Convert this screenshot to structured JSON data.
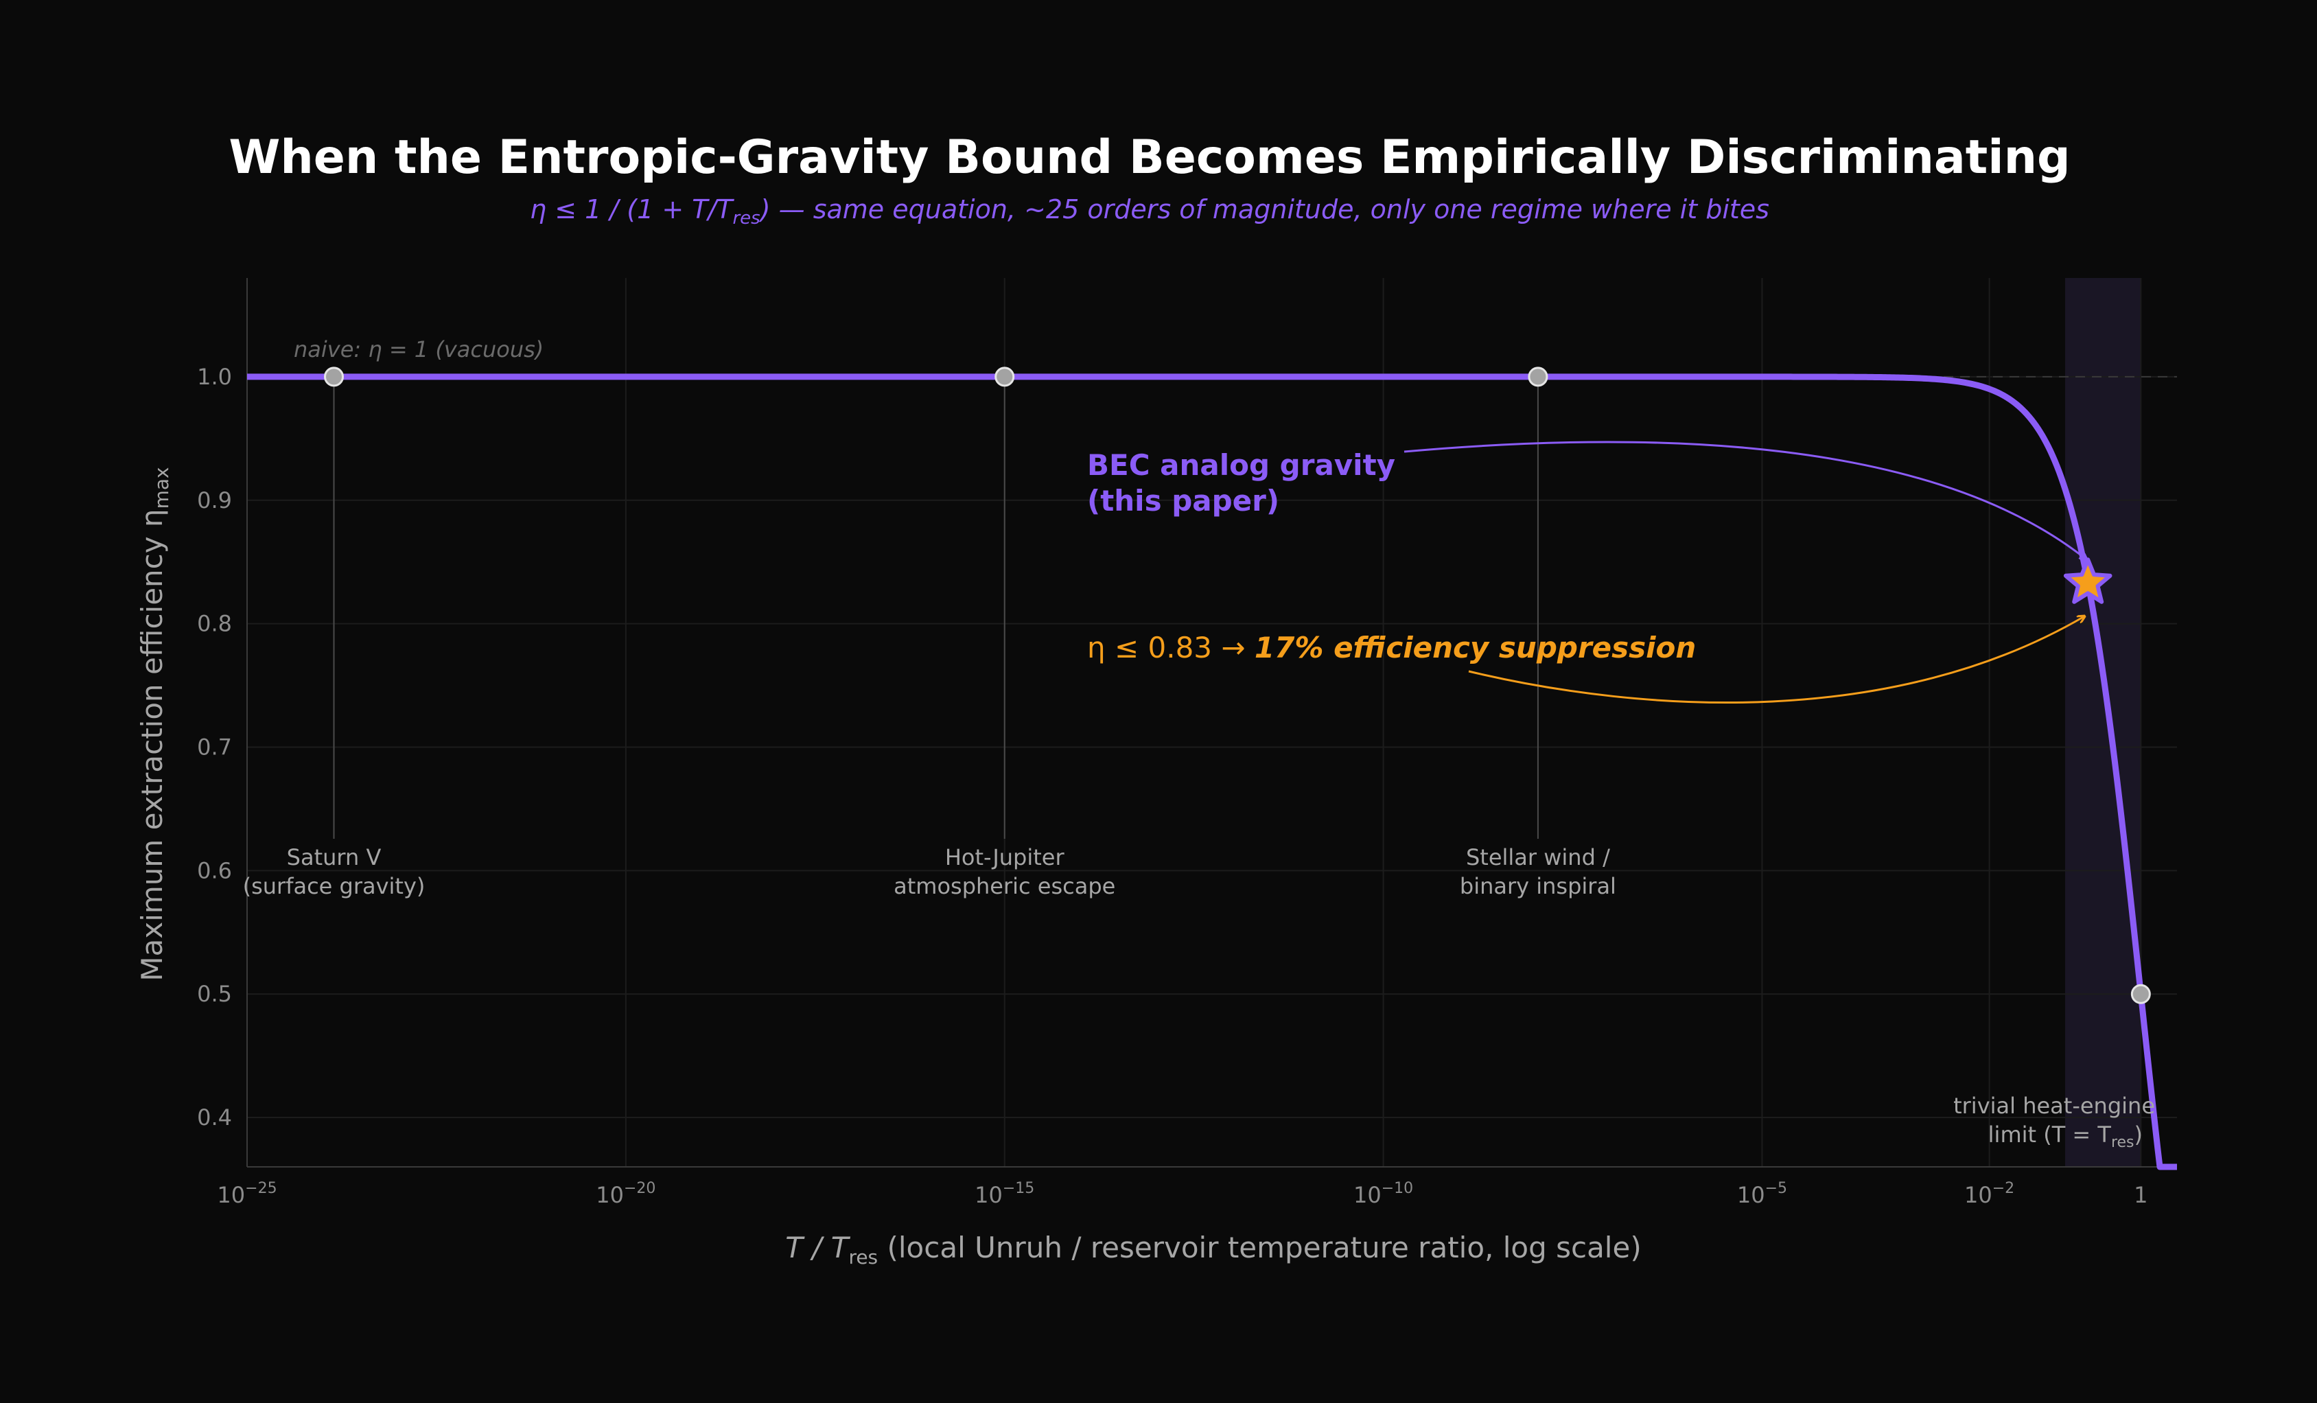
{
  "chart_data": {
    "type": "line",
    "title": "When the Entropic-Gravity Bound Becomes Empirically Discriminating",
    "subtitle": {
      "formula": "η ≤ 1 / (1 + T/T",
      "formula_sub": "res",
      "formula_end": ")",
      "text": "  —  same equation, ~25 orders of magnitude, only one regime where it bites"
    },
    "xlabel": {
      "symbol": "T / T",
      "symbol_sub": "res",
      "text": "  (local Unruh / reservoir temperature ratio, log scale)"
    },
    "ylabel": {
      "text": "Maximum extraction efficiency  η",
      "sub": "max"
    },
    "x_scale": "log",
    "xlim": [
      1e-25,
      3
    ],
    "ylim": [
      0.36,
      1.08
    ],
    "x_ticks": [
      {
        "value": 1e-25,
        "base": "10",
        "exp": "−25"
      },
      {
        "value": 1e-20,
        "base": "10",
        "exp": "−20"
      },
      {
        "value": 1e-15,
        "base": "10",
        "exp": "−15"
      },
      {
        "value": 1e-10,
        "base": "10",
        "exp": "−10"
      },
      {
        "value": 1e-05,
        "base": "10",
        "exp": "−5"
      },
      {
        "value": 0.01,
        "base": "10",
        "exp": "−2"
      },
      {
        "value": 1,
        "base": "1",
        "exp": ""
      }
    ],
    "y_ticks": [
      "0.4",
      "0.5",
      "0.6",
      "0.7",
      "0.8",
      "0.9",
      "1.0"
    ],
    "grid": true,
    "series": [
      {
        "formula": "eta = 1/(1 + T/Tres)",
        "color": "#8b5cf6"
      }
    ],
    "reference_line": {
      "y": 1.0,
      "label": "naive: η = 1  (vacuous)"
    },
    "highlight_region": {
      "x": [
        0.1,
        1
      ],
      "color": "#1a1625"
    },
    "points": [
      {
        "x": 1.4e-24,
        "y": 1.0,
        "label": [
          "Saturn V",
          "(surface gravity)"
        ]
      },
      {
        "x": 1e-15,
        "y": 1.0,
        "label": [
          "Hot-Jupiter",
          "atmospheric escape"
        ]
      },
      {
        "x": 1.1e-08,
        "y": 1.0,
        "label": [
          "Stellar wind /",
          "binary inspiral"
        ]
      },
      {
        "x": 1,
        "y": 0.5,
        "label": [
          "trivial heat-engine",
          "limit  (T = T",
          "res",
          ")"
        ]
      }
    ],
    "highlight_point": {
      "x": 0.2,
      "y": 0.833,
      "marker": "star",
      "color": "#f59e1b"
    },
    "annotations": {
      "bec": [
        "BEC analog gravity",
        "(this paper)"
      ],
      "eta_prefix": "η ≤ 0.83  →  ",
      "eta_bold": "17% efficiency suppression"
    },
    "colors": {
      "curve": "#8b5cf6",
      "orange": "#f59e1b",
      "marker": "#a3a3a3",
      "background": "#0a0a0a"
    }
  }
}
